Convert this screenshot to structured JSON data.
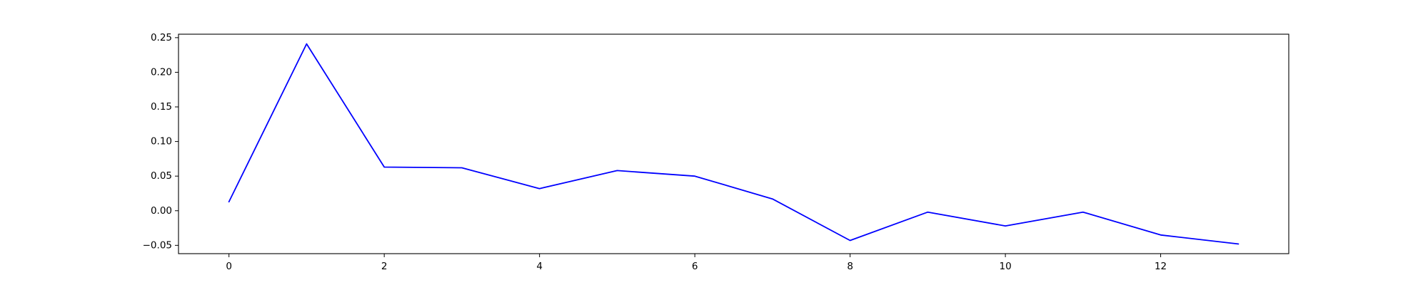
{
  "chart_data": {
    "type": "line",
    "title": "",
    "xlabel": "",
    "ylabel": "",
    "grid": false,
    "legend": null,
    "xlim": [
      -0.65,
      13.65
    ],
    "ylim": [
      -0.062,
      0.255
    ],
    "x_ticks": [
      0,
      2,
      4,
      6,
      8,
      10,
      12
    ],
    "x_tick_labels": [
      "0",
      "2",
      "4",
      "6",
      "8",
      "10",
      "12"
    ],
    "y_ticks": [
      -0.05,
      0.0,
      0.05,
      0.1,
      0.15,
      0.2,
      0.25
    ],
    "y_tick_labels": [
      "−0.05",
      "0.00",
      "0.05",
      "0.10",
      "0.15",
      "0.20",
      "0.25"
    ],
    "series": [
      {
        "color": "#0000ff",
        "x": [
          0,
          1,
          2,
          3,
          4,
          5,
          6,
          7,
          8,
          9,
          10,
          11,
          12,
          13
        ],
        "y": [
          0.013,
          0.241,
          0.063,
          0.062,
          0.032,
          0.058,
          0.05,
          0.017,
          -0.043,
          -0.002,
          -0.022,
          -0.002,
          -0.035,
          -0.048
        ]
      }
    ]
  }
}
